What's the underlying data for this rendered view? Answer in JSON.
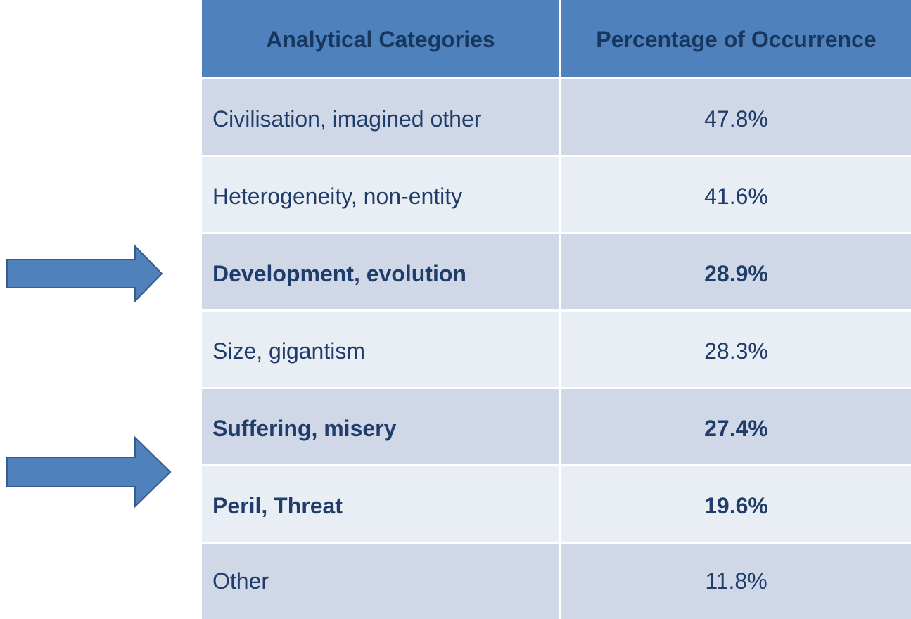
{
  "table": {
    "header": [
      "Analytical  Categories",
      "Percentage of Occurrence"
    ],
    "rows": [
      [
        "Civilisation, imagined other",
        "47.8%"
      ],
      [
        "Heterogeneity,  non-entity",
        "41.6%"
      ],
      [
        "Development, evolution",
        "28.9%"
      ],
      [
        "Size, gigantism",
        "28.3%"
      ],
      [
        "Suffering, misery",
        "27.4%"
      ],
      [
        "Peril, Threat",
        "19.6%"
      ],
      [
        "Other",
        "11.8%"
      ]
    ]
  }
}
